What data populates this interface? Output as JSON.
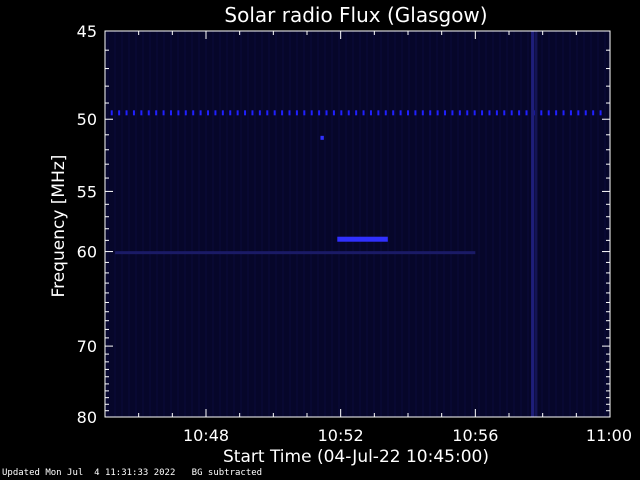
{
  "chart_data": {
    "type": "heatmap",
    "title": "Solar radio Flux (Glasgow)",
    "xlabel": "Start Time (04-Jul-22 10:45:00)",
    "ylabel": "Frequency [MHz]",
    "x_unit": "minutes after 10:45:00",
    "xlim": [
      0,
      15
    ],
    "x_ticks": [
      {
        "value": 3,
        "label": "10:48"
      },
      {
        "value": 7,
        "label": "10:52"
      },
      {
        "value": 11,
        "label": "10:56"
      },
      {
        "value": 15,
        "label": "11:00"
      }
    ],
    "y_scale": "reciprocal",
    "ylim": [
      45,
      80
    ],
    "y_ticks": [
      45,
      50,
      55,
      60,
      70,
      80
    ],
    "y_tick_labels": [
      "45",
      "50",
      "55",
      "60",
      "70",
      "80"
    ],
    "features": [
      {
        "kind": "repeating-dots",
        "freq_mhz": 49.6,
        "x_start": 0.2,
        "x_end": 14.9,
        "x_step": 0.22,
        "color": "#2020ff"
      },
      {
        "kind": "burst",
        "freq_mhz": 58.9,
        "x_start": 6.9,
        "x_end": 8.4,
        "color": "#3030ff"
      },
      {
        "kind": "band",
        "freq_mhz": 60.1,
        "x_start": 0.3,
        "x_end": 11.0,
        "color": "#1a1a66"
      },
      {
        "kind": "spot",
        "freq_mhz": 51.2,
        "x_start": 6.4,
        "x_end": 6.5,
        "color": "#3030ff"
      },
      {
        "kind": "vertical",
        "x": 12.7,
        "f_start": 45,
        "f_end": 80,
        "color": "#1e1e7a"
      },
      {
        "kind": "vertical",
        "x": 12.8,
        "f_start": 45,
        "f_end": 80,
        "color": "#141455"
      }
    ],
    "background_color": "#06062a",
    "grid": false
  },
  "footer": {
    "updated": "Updated Mon Jul  4 11:31:33 2022",
    "note": "BG subtracted"
  }
}
